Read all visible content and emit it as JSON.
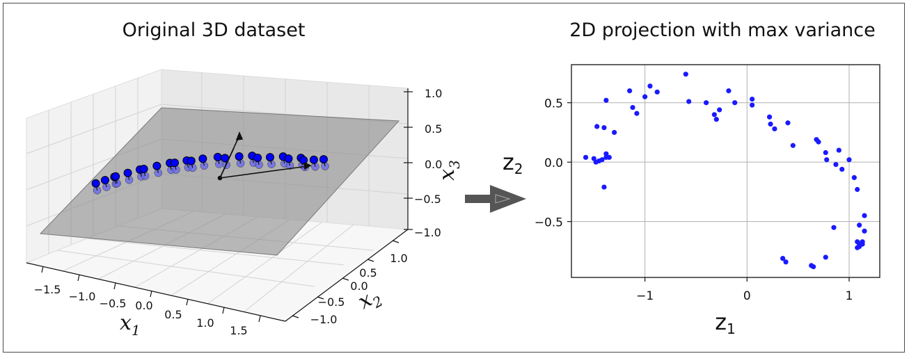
{
  "left_panel": {
    "title": "Original 3D dataset",
    "x_ticks": [
      "−1.5",
      "−1.0",
      "−0.5",
      "0.0",
      "0.5",
      "1.0",
      "1.5"
    ],
    "y_ticks": [
      "−1.0",
      "−0.5",
      "0.0",
      "0.5",
      "1.0"
    ],
    "z_ticks": [
      "−1.0",
      "−0.5",
      "0.0",
      "0.5",
      "1.0"
    ],
    "x_label": "x",
    "x_label_sub": "1",
    "y_label": "x",
    "y_label_sub": "2",
    "z_label": "x",
    "z_label_sub": "3",
    "colors": {
      "points": "#0000ff",
      "projected": "#6666ee",
      "plane": "#8c8c8c",
      "pane": "#f0f0f0"
    }
  },
  "arrow": {
    "icon": "arrow-right-icon",
    "color": "#555555"
  },
  "chart_data": [
    {
      "type": "scatter",
      "title": "Original 3D dataset",
      "xlabel": "x1",
      "ylabel": "x2",
      "zlabel": "x3",
      "xlim": [
        -1.8,
        1.8
      ],
      "ylim": [
        -1.3,
        1.3
      ],
      "zlim": [
        -1.0,
        1.0
      ],
      "grid": true,
      "points": [
        {
          "x": -1.3,
          "y": -0.5,
          "z": 0.0
        },
        {
          "x": -1.1,
          "y": -0.4,
          "z": 0.2
        },
        {
          "x": -0.8,
          "y": -0.3,
          "z": 0.4
        },
        {
          "x": -0.5,
          "y": -0.1,
          "z": 0.5
        },
        {
          "x": -0.2,
          "y": 0.0,
          "z": 0.55
        },
        {
          "x": 0.2,
          "y": 0.1,
          "z": 0.5
        },
        {
          "x": 0.5,
          "y": 0.3,
          "z": 0.3
        },
        {
          "x": 0.8,
          "y": 0.5,
          "z": 0.1
        },
        {
          "x": 1.0,
          "y": 0.7,
          "z": -0.1
        }
      ]
    },
    {
      "type": "scatter",
      "title": "2D projection with max variance",
      "xlabel": "z1",
      "ylabel": "z2",
      "xlim": [
        -1.72,
        1.3
      ],
      "ylim": [
        -0.97,
        0.82
      ],
      "x_ticks": [
        -1,
        0,
        1
      ],
      "y_ticks": [
        -0.5,
        0.0,
        0.5
      ],
      "x_tick_labels": [
        "−1",
        "0",
        "1"
      ],
      "y_tick_labels": [
        "−0.5",
        "0.0",
        "0.5"
      ],
      "grid": true,
      "color": "#1a1aff",
      "x": [
        -0.6,
        -0.95,
        -0.88,
        -1.0,
        -1.15,
        -1.12,
        -1.08,
        -1.3,
        -1.47,
        -1.38,
        -1.4,
        -1.48,
        -1.45,
        -1.42,
        -1.38,
        -1.35,
        -1.4,
        -1.58,
        -1.5,
        -1.38,
        -0.57,
        -0.4,
        -0.32,
        -0.3,
        -0.27,
        -0.18,
        -0.12,
        0.05,
        0.05,
        0.22,
        0.23,
        0.27,
        0.4,
        0.45,
        0.68,
        0.7,
        0.77,
        0.78,
        0.87,
        0.93,
        0.9,
        1.0,
        1.05,
        1.08,
        1.1,
        1.15,
        1.15,
        1.13,
        1.08,
        1.1,
        1.1,
        1.13,
        1.08,
        0.85,
        0.77,
        0.35,
        0.38,
        0.63,
        0.65
      ],
      "y": [
        0.74,
        0.64,
        0.59,
        0.55,
        0.6,
        0.46,
        0.41,
        0.25,
        0.3,
        0.52,
        0.29,
        0.0,
        0.01,
        0.02,
        0.07,
        0.04,
        -0.21,
        0.04,
        0.03,
        0.04,
        0.51,
        0.5,
        0.4,
        0.36,
        0.44,
        0.6,
        0.5,
        0.48,
        0.53,
        0.38,
        0.32,
        0.28,
        0.33,
        0.14,
        0.19,
        0.17,
        0.08,
        0.02,
        -0.02,
        -0.06,
        0.1,
        0.02,
        -0.13,
        -0.23,
        -0.53,
        -0.45,
        -0.58,
        -0.67,
        -0.67,
        -0.71,
        -0.69,
        -0.69,
        -0.72,
        -0.55,
        -0.8,
        -0.81,
        -0.84,
        -0.87,
        -0.88
      ]
    }
  ]
}
